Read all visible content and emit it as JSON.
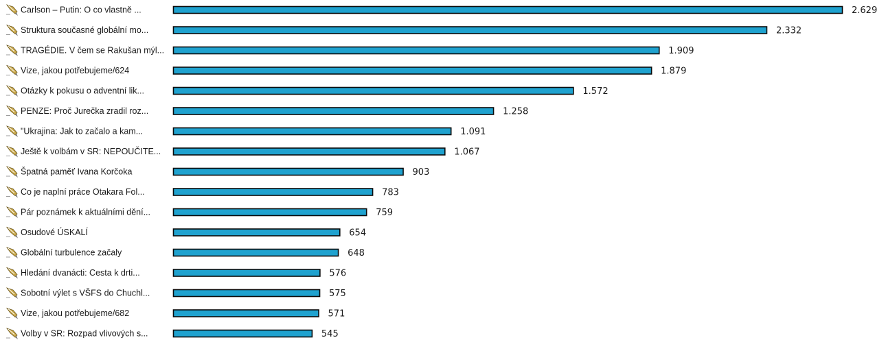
{
  "chart_data": {
    "type": "bar",
    "orientation": "horizontal",
    "bar_color": "#1fa2cf",
    "bar_border_color": "#0b0b0b",
    "icon": "pen-icon",
    "grid": false,
    "categories": [
      "Carlson – Putin: O co vlastně ...",
      "Struktura současné globální mo...",
      "TRAGÉDIE. V čem se Rakušan mýl...",
      "Vize, jakou potřebujeme/624",
      "Otázky k pokusu o adventní lik...",
      "PENZE: Proč Jurečka zradil roz...",
      "\"Ukrajina: Jak to začalo a kam...",
      "Ještě k volbám v SR: NEPOUČITE...",
      "Špatná paměť Ivana Korčoka",
      "Co je naplní práce Otakara Fol...",
      "Pár poznámek k aktuálními dění...",
      "Osudové ÚSKALÍ",
      "Globální turbulence začaly",
      "Hledání dvanácti: Cesta k drti...",
      "Sobotní výlet s VŠFS do Chuchl...",
      "Vize, jakou potřebujeme/682",
      "Volby v SR: Rozpad vlivových s..."
    ],
    "values": [
      2629,
      2332,
      1909,
      1879,
      1572,
      1258,
      1091,
      1067,
      903,
      783,
      759,
      654,
      648,
      576,
      575,
      571,
      545
    ],
    "value_labels": [
      "2.629",
      "2.332",
      "1.909",
      "1.879",
      "1.572",
      "1.258",
      "1.091",
      "1.067",
      "903",
      "783",
      "759",
      "654",
      "648",
      "576",
      "575",
      "571",
      "545"
    ],
    "xlim": [
      0,
      2629
    ]
  }
}
